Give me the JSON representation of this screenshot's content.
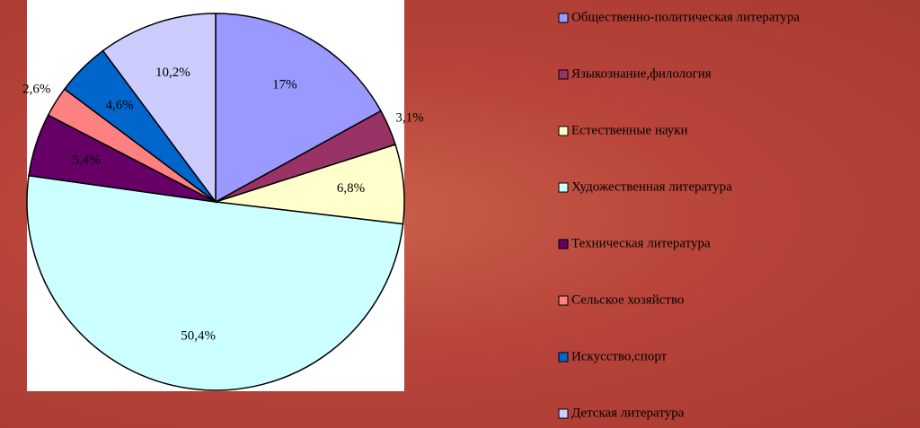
{
  "chart_data": {
    "type": "pie",
    "categories": [
      "Общественно-политическая литература",
      "Языкознание,филология",
      "Естественные науки",
      "Художественная литература",
      "Техническая литература",
      "Сельское хозяйство",
      "Искусство,спорт",
      "Детская литература"
    ],
    "values": [
      17,
      3.1,
      6.8,
      50.4,
      5.4,
      2.6,
      4.6,
      10.2
    ],
    "value_labels": [
      "17%",
      "3,1%",
      "6,8%",
      "50,4%",
      "5,4%",
      "2,6%",
      "4,6%",
      "10,2%"
    ],
    "colors": [
      "#9999ff",
      "#993366",
      "#ffffcc",
      "#ccffff",
      "#660066",
      "#ff8080",
      "#0066cc",
      "#ccccff"
    ],
    "legend": "right"
  }
}
